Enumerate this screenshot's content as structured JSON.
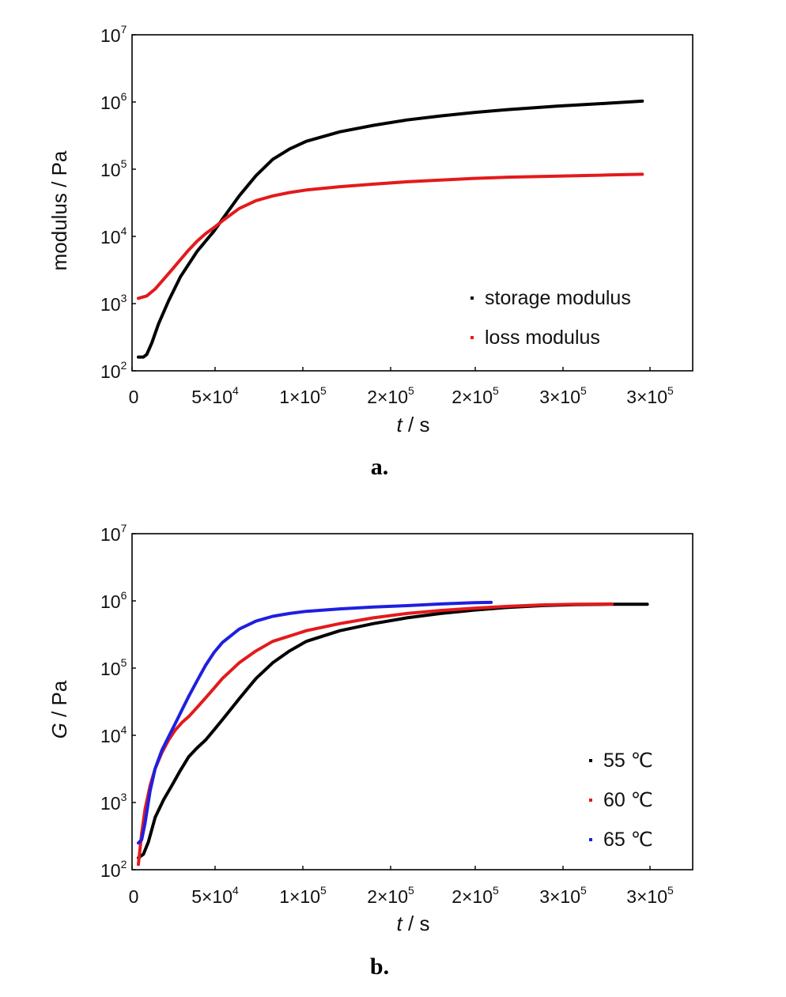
{
  "chart_data": [
    {
      "type": "line",
      "panel_label": "a.",
      "ylabel": "modulus / Pa",
      "xlabel": "t / s",
      "xlabel_italic": "t",
      "xlabel_rest": " / s",
      "yscale": "log",
      "ylim": [
        100,
        10000000
      ],
      "xlim": [
        0,
        330000
      ],
      "y_tick_bases": [
        "10",
        "10",
        "10",
        "10",
        "10",
        "10"
      ],
      "y_tick_exps": [
        "2",
        "3",
        "4",
        "5",
        "6",
        "7"
      ],
      "x_tick_labels": [
        {
          "mant": "0",
          "exp": ""
        },
        {
          "mant": "5×10",
          "exp": "4"
        },
        {
          "mant": "1×10",
          "exp": "5"
        },
        {
          "mant": "2×10",
          "exp": "5"
        },
        {
          "mant": "2×10",
          "exp": "5"
        },
        {
          "mant": "3×10",
          "exp": "5"
        },
        {
          "mant": "3×10",
          "exp": "5"
        }
      ],
      "legend_position": "bottom-right",
      "series": [
        {
          "name": "storage modulus",
          "color": "#000000",
          "x": [
            0,
            3000,
            5000,
            8000,
            12000,
            18000,
            25000,
            35000,
            40000,
            45000,
            50000,
            60000,
            70000,
            80000,
            90000,
            100000,
            120000,
            140000,
            160000,
            180000,
            200000,
            220000,
            250000,
            280000,
            300000
          ],
          "y": [
            160,
            160,
            175,
            260,
            500,
            1100,
            2500,
            6000,
            8500,
            12000,
            18000,
            40000,
            80000,
            140000,
            200000,
            260000,
            360000,
            450000,
            540000,
            620000,
            700000,
            770000,
            870000,
            960000,
            1030000
          ]
        },
        {
          "name": "loss modulus",
          "color": "#e31a1c",
          "x": [
            0,
            5000,
            10000,
            15000,
            20000,
            25000,
            30000,
            35000,
            40000,
            45000,
            50000,
            60000,
            70000,
            80000,
            90000,
            100000,
            120000,
            140000,
            160000,
            180000,
            200000,
            220000,
            250000,
            280000,
            300000
          ],
          "y": [
            1200,
            1300,
            1650,
            2300,
            3200,
            4500,
            6300,
            8500,
            11000,
            13500,
            17000,
            26000,
            34000,
            40000,
            45000,
            49000,
            55000,
            60000,
            65000,
            69000,
            73000,
            76000,
            79000,
            82000,
            84000
          ]
        }
      ]
    },
    {
      "type": "line",
      "panel_label": "b.",
      "ylabel": "G / Pa",
      "ylabel_italic": "G",
      "ylabel_rest": " / Pa",
      "xlabel": "t / s",
      "xlabel_italic": "t",
      "xlabel_rest": " / s",
      "yscale": "log",
      "ylim": [
        100,
        10000000
      ],
      "xlim": [
        0,
        330000
      ],
      "y_tick_bases": [
        "10",
        "10",
        "10",
        "10",
        "10",
        "10"
      ],
      "y_tick_exps": [
        "2",
        "3",
        "4",
        "5",
        "6",
        "7"
      ],
      "x_tick_labels": [
        {
          "mant": "0",
          "exp": ""
        },
        {
          "mant": "5×10",
          "exp": "4"
        },
        {
          "mant": "1×10",
          "exp": "5"
        },
        {
          "mant": "2×10",
          "exp": "5"
        },
        {
          "mant": "2×10",
          "exp": "5"
        },
        {
          "mant": "3×10",
          "exp": "5"
        },
        {
          "mant": "3×10",
          "exp": "5"
        }
      ],
      "legend_position": "bottom-right",
      "series": [
        {
          "name": "55 ℃",
          "color": "#000000",
          "x": [
            0,
            3000,
            6000,
            10000,
            15000,
            20000,
            25000,
            30000,
            35000,
            40000,
            45000,
            50000,
            60000,
            70000,
            80000,
            90000,
            100000,
            120000,
            140000,
            160000,
            180000,
            200000,
            220000,
            240000,
            260000,
            280000,
            303000
          ],
          "y": [
            150,
            170,
            260,
            600,
            1100,
            1800,
            3000,
            4800,
            6500,
            8500,
            12000,
            17000,
            35000,
            70000,
            120000,
            180000,
            250000,
            360000,
            460000,
            560000,
            650000,
            730000,
            800000,
            850000,
            880000,
            890000,
            890000
          ]
        },
        {
          "name": "60 ℃",
          "color": "#e31a1c",
          "x": [
            0,
            2000,
            4000,
            7000,
            10000,
            14000,
            18000,
            22000,
            26000,
            30000,
            35000,
            40000,
            45000,
            50000,
            60000,
            70000,
            80000,
            100000,
            120000,
            140000,
            160000,
            180000,
            200000,
            220000,
            240000,
            260000,
            282000
          ],
          "y": [
            120,
            350,
            800,
            1800,
            3200,
            5500,
            8500,
            12000,
            15500,
            19000,
            26000,
            36000,
            50000,
            70000,
            120000,
            180000,
            250000,
            360000,
            460000,
            560000,
            650000,
            720000,
            780000,
            830000,
            870000,
            890000,
            900000
          ]
        },
        {
          "name": "65 ℃",
          "color": "#1f1fe0",
          "x": [
            0,
            2000,
            4000,
            7000,
            10000,
            14000,
            18000,
            22000,
            26000,
            30000,
            35000,
            40000,
            45000,
            50000,
            60000,
            70000,
            80000,
            90000,
            100000,
            120000,
            140000,
            160000,
            180000,
            200000,
            210000
          ],
          "y": [
            250,
            280,
            500,
            1500,
            3200,
            6000,
            9500,
            15000,
            24000,
            38000,
            65000,
            110000,
            170000,
            240000,
            380000,
            500000,
            590000,
            650000,
            700000,
            760000,
            810000,
            850000,
            900000,
            940000,
            950000
          ]
        }
      ]
    }
  ]
}
